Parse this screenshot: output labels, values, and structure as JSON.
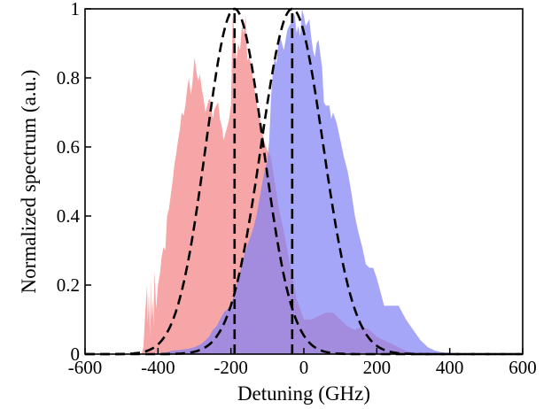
{
  "chart_data": {
    "type": "area",
    "title": "",
    "xlabel": "Detuning (GHz)",
    "ylabel": "Normalized spectrum (a.u.)",
    "xlim": [
      -600,
      600
    ],
    "ylim": [
      0,
      1
    ],
    "grid": false,
    "legend": "none",
    "x_ticks": [
      "-600",
      "-400",
      "-200",
      "0",
      "200",
      "400",
      "600"
    ],
    "y_ticks": [
      "0",
      "0.2",
      "0.4",
      "0.6",
      "0.8",
      "1"
    ],
    "series": [
      {
        "color": "#f28080",
        "opacity": 0.7,
        "x": [
          -445,
          -440,
          -435,
          -430,
          -428,
          -425,
          -422,
          -420,
          -418,
          -415,
          -412,
          -410,
          -405,
          -400,
          -395,
          -390,
          -385,
          -380,
          -375,
          -370,
          -365,
          -360,
          -355,
          -350,
          -345,
          -340,
          -335,
          -330,
          -325,
          -320,
          -315,
          -310,
          -305,
          -300,
          -295,
          -290,
          -285,
          -280,
          -275,
          -270,
          -265,
          -260,
          -255,
          -250,
          -245,
          -240,
          -235,
          -230,
          -225,
          -220,
          -215,
          -210,
          -205,
          -200,
          -195,
          -190,
          -185,
          -180,
          -175,
          -170,
          -165,
          -160,
          -155,
          -150,
          -145,
          -140,
          -130,
          -120,
          -110,
          -100,
          -90,
          -80,
          -70,
          -60,
          -50,
          -40,
          -30,
          -20,
          -10,
          0,
          20,
          40,
          60,
          80,
          100,
          120,
          140,
          160,
          180,
          200,
          220,
          240,
          260,
          280,
          300,
          320
        ],
        "y": [
          0,
          0.02,
          0.12,
          0.2,
          0.09,
          0.18,
          0.05,
          0.22,
          0.1,
          0.16,
          0.08,
          0.24,
          0.13,
          0.2,
          0.23,
          0.28,
          0.31,
          0.3,
          0.4,
          0.42,
          0.46,
          0.5,
          0.55,
          0.58,
          0.62,
          0.65,
          0.7,
          0.69,
          0.72,
          0.77,
          0.8,
          0.75,
          0.79,
          0.86,
          0.82,
          0.79,
          0.81,
          0.77,
          0.74,
          0.7,
          0.72,
          0.74,
          0.73,
          0.68,
          0.71,
          0.72,
          0.73,
          0.68,
          0.66,
          0.62,
          0.64,
          0.66,
          0.68,
          0.72,
          0.98,
          0.93,
          0.85,
          0.9,
          0.88,
          0.95,
          0.93,
          0.98,
          0.85,
          0.86,
          0.84,
          0.8,
          0.73,
          0.68,
          0.62,
          0.59,
          0.57,
          0.5,
          0.43,
          0.38,
          0.33,
          0.27,
          0.22,
          0.16,
          0.13,
          0.1,
          0.1,
          0.11,
          0.12,
          0.12,
          0.1,
          0.08,
          0.07,
          0.08,
          0.07,
          0.05,
          0.04,
          0.03,
          0.02,
          0.01,
          0.005,
          0
        ]
      },
      {
        "color": "#8080f5",
        "opacity": 0.7,
        "x": [
          -420,
          -400,
          -380,
          -360,
          -340,
          -320,
          -300,
          -280,
          -260,
          -250,
          -240,
          -230,
          -220,
          -210,
          -200,
          -190,
          -180,
          -170,
          -160,
          -150,
          -140,
          -130,
          -120,
          -110,
          -100,
          -95,
          -90,
          -85,
          -80,
          -75,
          -70,
          -65,
          -60,
          -55,
          -50,
          -45,
          -40,
          -35,
          -30,
          -25,
          -20,
          -15,
          -10,
          -5,
          0,
          5,
          10,
          15,
          20,
          25,
          30,
          35,
          40,
          45,
          50,
          55,
          60,
          65,
          70,
          75,
          80,
          90,
          100,
          110,
          120,
          130,
          140,
          150,
          160,
          170,
          180,
          190,
          200,
          210,
          220,
          230,
          240,
          260,
          280,
          300,
          320,
          340,
          360,
          380,
          400,
          420,
          440
        ],
        "y": [
          0,
          0.002,
          0.005,
          0.01,
          0.012,
          0.015,
          0.02,
          0.03,
          0.05,
          0.07,
          0.08,
          0.1,
          0.12,
          0.13,
          0.14,
          0.18,
          0.22,
          0.26,
          0.3,
          0.33,
          0.36,
          0.4,
          0.46,
          0.52,
          0.56,
          0.62,
          0.74,
          0.82,
          0.86,
          0.84,
          0.9,
          0.92,
          0.9,
          0.88,
          0.91,
          0.94,
          0.95,
          0.96,
          0.99,
          0.98,
          0.93,
          0.95,
          0.92,
          1.0,
          0.98,
          0.95,
          0.96,
          0.97,
          0.92,
          0.88,
          0.86,
          0.9,
          0.91,
          0.87,
          0.83,
          0.73,
          0.72,
          0.72,
          0.72,
          0.68,
          0.7,
          0.67,
          0.62,
          0.57,
          0.53,
          0.47,
          0.4,
          0.35,
          0.31,
          0.26,
          0.25,
          0.25,
          0.22,
          0.18,
          0.14,
          0.14,
          0.14,
          0.14,
          0.1,
          0.07,
          0.04,
          0.02,
          0.01,
          0.005,
          0.004,
          0.002,
          0
        ]
      }
    ],
    "fits": [
      {
        "type": "gaussian",
        "center": -190,
        "peak": 1.0,
        "fwhm": 185,
        "style": "dashed",
        "color": "#000000",
        "line_at_center": true
      },
      {
        "type": "gaussian",
        "center": -32,
        "peak": 1.0,
        "fwhm": 200,
        "style": "dashed",
        "color": "#000000",
        "line_at_center": true
      }
    ]
  }
}
